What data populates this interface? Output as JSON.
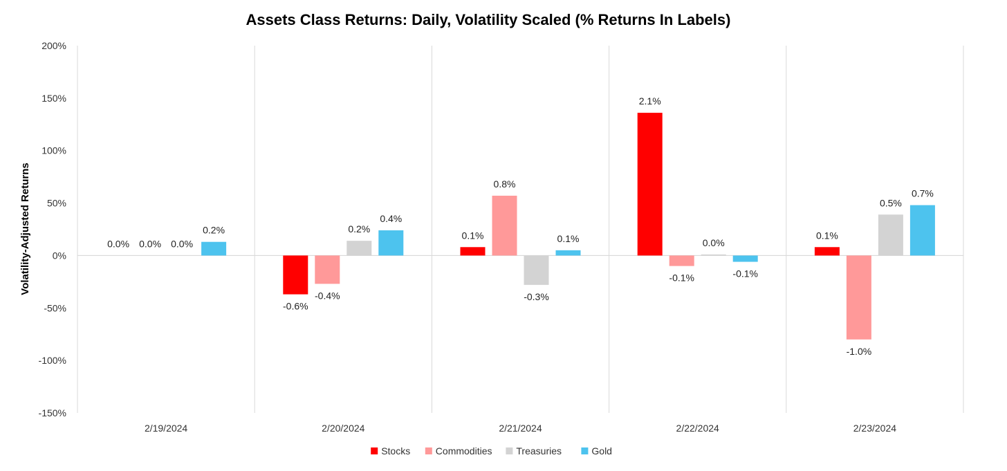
{
  "chart_data": {
    "type": "bar",
    "title": "Assets Class Returns: Daily, Volatility Scaled (% Returns In Labels)",
    "xlabel": "",
    "ylabel": "Volatility-Adjusted Returns",
    "categories": [
      "2/19/2024",
      "2/20/2024",
      "2/21/2024",
      "2/22/2024",
      "2/23/2024"
    ],
    "ylim": [
      -150,
      200
    ],
    "yticks": [
      200,
      150,
      100,
      50,
      0,
      -50,
      -100,
      -150
    ],
    "ytick_labels": [
      "200%",
      "150%",
      "100%",
      "50%",
      "0%",
      "-50%",
      "-100%",
      "-150%"
    ],
    "grid": "vertical separators between categories",
    "legend_position": "bottom-center",
    "series": [
      {
        "name": "Stocks",
        "color": "#ff0000",
        "values": [
          0,
          -37,
          8,
          136,
          8
        ],
        "labels": [
          "0.0%",
          "-0.6%",
          "0.1%",
          "2.1%",
          "0.1%"
        ]
      },
      {
        "name": "Commodities",
        "color": "#ff9999",
        "values": [
          0,
          -27,
          57,
          -10,
          -80
        ],
        "labels": [
          "0.0%",
          "-0.4%",
          "0.8%",
          "-0.1%",
          "-1.0%"
        ]
      },
      {
        "name": "Treasuries",
        "color": "#d3d3d3",
        "values": [
          0,
          14,
          -28,
          1,
          39
        ],
        "labels": [
          "0.0%",
          "0.2%",
          "-0.3%",
          "0.0%",
          "0.5%"
        ]
      },
      {
        "name": "Gold",
        "color": "#4dc3ee",
        "values": [
          13,
          24,
          5,
          -6,
          48
        ],
        "labels": [
          "0.2%",
          "0.4%",
          "0.1%",
          "-0.1%",
          "0.7%"
        ]
      }
    ]
  }
}
